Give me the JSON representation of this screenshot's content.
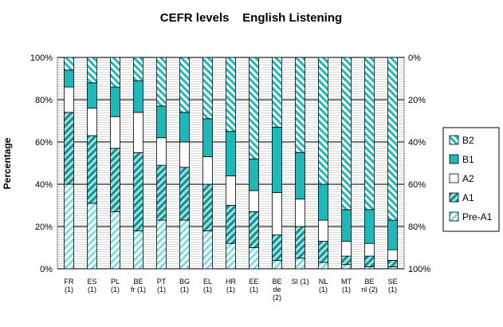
{
  "chart_data": {
    "type": "bar",
    "stacked": true,
    "title": "CEFR levels    English Listening",
    "ylabel": "Percentage",
    "ylim": [
      0,
      100
    ],
    "y_ticks_left": [
      "0%",
      "20%",
      "40%",
      "60%",
      "80%",
      "100%"
    ],
    "y_ticks_right": [
      "100%",
      "80%",
      "60%",
      "40%",
      "20%",
      "0%"
    ],
    "grid": true,
    "legend_position": "right",
    "categories": [
      [
        "FR",
        "(1)"
      ],
      [
        "ES",
        "(1)"
      ],
      [
        "PL",
        "(1)"
      ],
      [
        "BE",
        "fr (1)"
      ],
      [
        "PT",
        "(1)"
      ],
      [
        "BG",
        "(1)"
      ],
      [
        "EL",
        "(1)"
      ],
      [
        "HR",
        "(1)"
      ],
      [
        "EE",
        "(1)"
      ],
      [
        "BE",
        "de",
        "(2)"
      ],
      [
        "SI (1)"
      ],
      [
        "NL",
        "(1)"
      ],
      [
        "MT",
        "(1)"
      ],
      [
        "BE",
        "nl (2)"
      ],
      [
        "SE",
        "(1)"
      ]
    ],
    "series": [
      {
        "name": "Pre-A1",
        "color": "#7ddedd",
        "pattern": "hatch-light",
        "values": [
          40,
          31,
          27,
          18,
          23,
          23,
          18,
          12,
          10,
          4,
          5,
          3,
          2,
          1,
          1
        ]
      },
      {
        "name": "A1",
        "color": "#1fb8b8",
        "pattern": "hatch-teal",
        "values": [
          34,
          32,
          30,
          37,
          26,
          25,
          22,
          18,
          17,
          12,
          15,
          10,
          4,
          5,
          3
        ]
      },
      {
        "name": "A2",
        "color": "#ffffff",
        "pattern": "solid",
        "values": [
          12,
          13,
          15,
          19,
          13,
          12,
          13,
          14,
          10,
          20,
          13,
          10,
          7,
          6,
          5
        ]
      },
      {
        "name": "B1",
        "color": "#1fb8b8",
        "pattern": "solid",
        "values": [
          8,
          12,
          14,
          15,
          15,
          14,
          18,
          21,
          15,
          31,
          22,
          17,
          15,
          16,
          14
        ]
      },
      {
        "name": "B2",
        "color": "#1fb8b8",
        "pattern": "hatch-white",
        "values": [
          6,
          12,
          14,
          11,
          23,
          26,
          29,
          35,
          48,
          33,
          45,
          60,
          72,
          72,
          77
        ]
      }
    ],
    "legend_order": [
      "B2",
      "B1",
      "A2",
      "A1",
      "Pre-A1"
    ]
  }
}
